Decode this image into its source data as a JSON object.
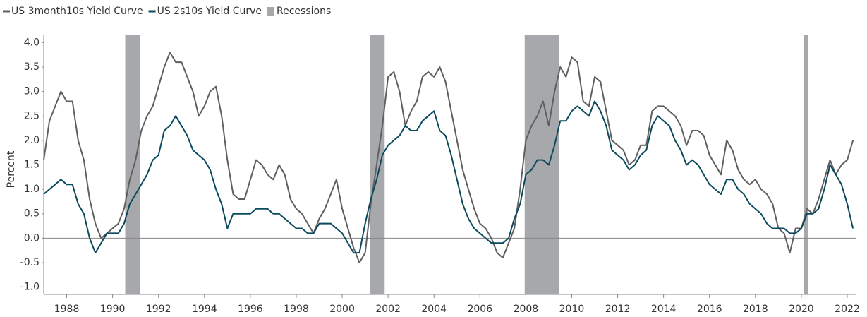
{
  "chart_data": {
    "type": "line",
    "y_label": "Percent",
    "x": [
      1987,
      1987.25,
      1987.5,
      1987.75,
      1988,
      1988.25,
      1988.5,
      1988.75,
      1989,
      1989.25,
      1989.5,
      1989.75,
      1990,
      1990.25,
      1990.5,
      1990.75,
      1991,
      1991.25,
      1991.5,
      1991.75,
      1992,
      1992.25,
      1992.5,
      1992.75,
      1993,
      1993.25,
      1993.5,
      1993.75,
      1994,
      1994.25,
      1994.5,
      1994.75,
      1995,
      1995.25,
      1995.5,
      1995.75,
      1996,
      1996.25,
      1996.5,
      1996.75,
      1997,
      1997.25,
      1997.5,
      1997.75,
      1998,
      1998.25,
      1998.5,
      1998.75,
      1999,
      1999.25,
      1999.5,
      1999.75,
      2000,
      2000.25,
      2000.5,
      2000.75,
      2001,
      2001.25,
      2001.5,
      2001.75,
      2002,
      2002.25,
      2002.5,
      2002.75,
      2003,
      2003.25,
      2003.5,
      2003.75,
      2004,
      2004.25,
      2004.5,
      2004.75,
      2005,
      2005.25,
      2005.5,
      2005.75,
      2006,
      2006.25,
      2006.5,
      2006.75,
      2007,
      2007.25,
      2007.5,
      2007.75,
      2008,
      2008.25,
      2008.5,
      2008.75,
      2009,
      2009.25,
      2009.5,
      2009.75,
      2010,
      2010.25,
      2010.5,
      2010.75,
      2011,
      2011.25,
      2011.5,
      2011.75,
      2012,
      2012.25,
      2012.5,
      2012.75,
      2013,
      2013.25,
      2013.5,
      2013.75,
      2014,
      2014.25,
      2014.5,
      2014.75,
      2015,
      2015.25,
      2015.5,
      2015.75,
      2016,
      2016.25,
      2016.5,
      2016.75,
      2017,
      2017.25,
      2017.5,
      2017.75,
      2018,
      2018.25,
      2018.5,
      2018.75,
      2019,
      2019.25,
      2019.5,
      2019.75,
      2020,
      2020.25,
      2020.5,
      2020.75,
      2021,
      2021.25,
      2021.5,
      2021.75,
      2022,
      2022.25
    ],
    "series": [
      {
        "name": "US 3month10s Yield Curve",
        "color": "#5f5f5f",
        "values": [
          1.6,
          2.4,
          2.7,
          3.0,
          2.8,
          2.8,
          2.0,
          1.6,
          0.8,
          0.3,
          0.0,
          0.1,
          0.2,
          0.3,
          0.6,
          1.2,
          1.6,
          2.2,
          2.5,
          2.7,
          3.1,
          3.5,
          3.8,
          3.6,
          3.6,
          3.3,
          3.0,
          2.5,
          2.7,
          3.0,
          3.1,
          2.5,
          1.6,
          0.9,
          0.8,
          0.8,
          1.2,
          1.6,
          1.5,
          1.3,
          1.2,
          1.5,
          1.3,
          0.8,
          0.6,
          0.5,
          0.3,
          0.1,
          0.4,
          0.6,
          0.9,
          1.2,
          0.6,
          0.2,
          -0.2,
          -0.5,
          -0.3,
          0.7,
          1.5,
          2.3,
          3.3,
          3.4,
          3.0,
          2.3,
          2.6,
          2.8,
          3.3,
          3.4,
          3.3,
          3.5,
          3.2,
          2.6,
          2.0,
          1.4,
          1.0,
          0.6,
          0.3,
          0.2,
          0.0,
          -0.3,
          -0.4,
          -0.1,
          0.2,
          1.0,
          2.0,
          2.3,
          2.5,
          2.8,
          2.3,
          3.0,
          3.5,
          3.3,
          3.7,
          3.6,
          2.8,
          2.7,
          3.3,
          3.2,
          2.6,
          2.0,
          1.9,
          1.8,
          1.5,
          1.6,
          1.9,
          1.9,
          2.6,
          2.7,
          2.7,
          2.6,
          2.5,
          2.3,
          1.9,
          2.2,
          2.2,
          2.1,
          1.7,
          1.5,
          1.3,
          2.0,
          1.8,
          1.4,
          1.2,
          1.1,
          1.2,
          1.0,
          0.9,
          0.7,
          0.2,
          0.1,
          -0.3,
          0.2,
          0.2,
          0.6,
          0.5,
          0.8,
          1.2,
          1.6,
          1.3,
          1.5,
          1.6,
          2.0
        ]
      },
      {
        "name": "US 2s10s Yield Curve",
        "color": "#0b4a5e",
        "values": [
          0.9,
          1.0,
          1.1,
          1.2,
          1.1,
          1.1,
          0.7,
          0.5,
          0.0,
          -0.3,
          -0.1,
          0.1,
          0.1,
          0.1,
          0.3,
          0.7,
          0.9,
          1.1,
          1.3,
          1.6,
          1.7,
          2.2,
          2.3,
          2.5,
          2.3,
          2.1,
          1.8,
          1.7,
          1.6,
          1.4,
          1.0,
          0.7,
          0.2,
          0.5,
          0.5,
          0.5,
          0.5,
          0.6,
          0.6,
          0.6,
          0.5,
          0.5,
          0.4,
          0.3,
          0.2,
          0.2,
          0.1,
          0.1,
          0.3,
          0.3,
          0.3,
          0.2,
          0.1,
          -0.1,
          -0.3,
          -0.3,
          0.3,
          0.8,
          1.2,
          1.7,
          1.9,
          2.0,
          2.1,
          2.3,
          2.2,
          2.2,
          2.4,
          2.5,
          2.6,
          2.2,
          2.1,
          1.7,
          1.2,
          0.7,
          0.4,
          0.2,
          0.1,
          0.0,
          -0.1,
          -0.1,
          -0.1,
          0.0,
          0.4,
          0.7,
          1.3,
          1.4,
          1.6,
          1.6,
          1.5,
          1.9,
          2.4,
          2.4,
          2.6,
          2.7,
          2.6,
          2.5,
          2.8,
          2.6,
          2.3,
          1.8,
          1.7,
          1.6,
          1.4,
          1.5,
          1.7,
          1.8,
          2.3,
          2.5,
          2.4,
          2.3,
          2.0,
          1.8,
          1.5,
          1.6,
          1.5,
          1.3,
          1.1,
          1.0,
          0.9,
          1.2,
          1.2,
          1.0,
          0.9,
          0.7,
          0.6,
          0.5,
          0.3,
          0.2,
          0.2,
          0.2,
          0.1,
          0.1,
          0.2,
          0.5,
          0.5,
          0.6,
          1.0,
          1.5,
          1.3,
          1.1,
          0.7,
          0.2
        ]
      }
    ],
    "recessions": {
      "name": "Recessions",
      "color": "#a7a8ab",
      "periods": [
        [
          1990.55,
          1991.2
        ],
        [
          2001.2,
          2001.85
        ],
        [
          2007.95,
          2009.45
        ],
        [
          2020.1,
          2020.3
        ]
      ]
    },
    "xlim": [
      1987,
      2022.4
    ],
    "xticks": [
      1988,
      1990,
      1992,
      1994,
      1996,
      1998,
      2000,
      2002,
      2004,
      2006,
      2008,
      2010,
      2012,
      2014,
      2016,
      2018,
      2020,
      2022
    ],
    "ylim": [
      -1.15,
      4.15
    ],
    "yticks": [
      {
        "value": -1,
        "label": "-1.0"
      },
      {
        "value": -0.5,
        "label": "-0.5"
      },
      {
        "value": 0,
        "label": "0.0"
      },
      {
        "value": 0.5,
        "label": "0.5"
      },
      {
        "value": 1,
        "label": "1.0"
      },
      {
        "value": 1.5,
        "label": "1.5"
      },
      {
        "value": 2,
        "label": "2.0"
      },
      {
        "value": 2.5,
        "label": "2.5"
      },
      {
        "value": 3,
        "label": "3.0"
      },
      {
        "value": 3.5,
        "label": "3.5"
      },
      {
        "value": 4,
        "label": "4.0"
      }
    ]
  }
}
